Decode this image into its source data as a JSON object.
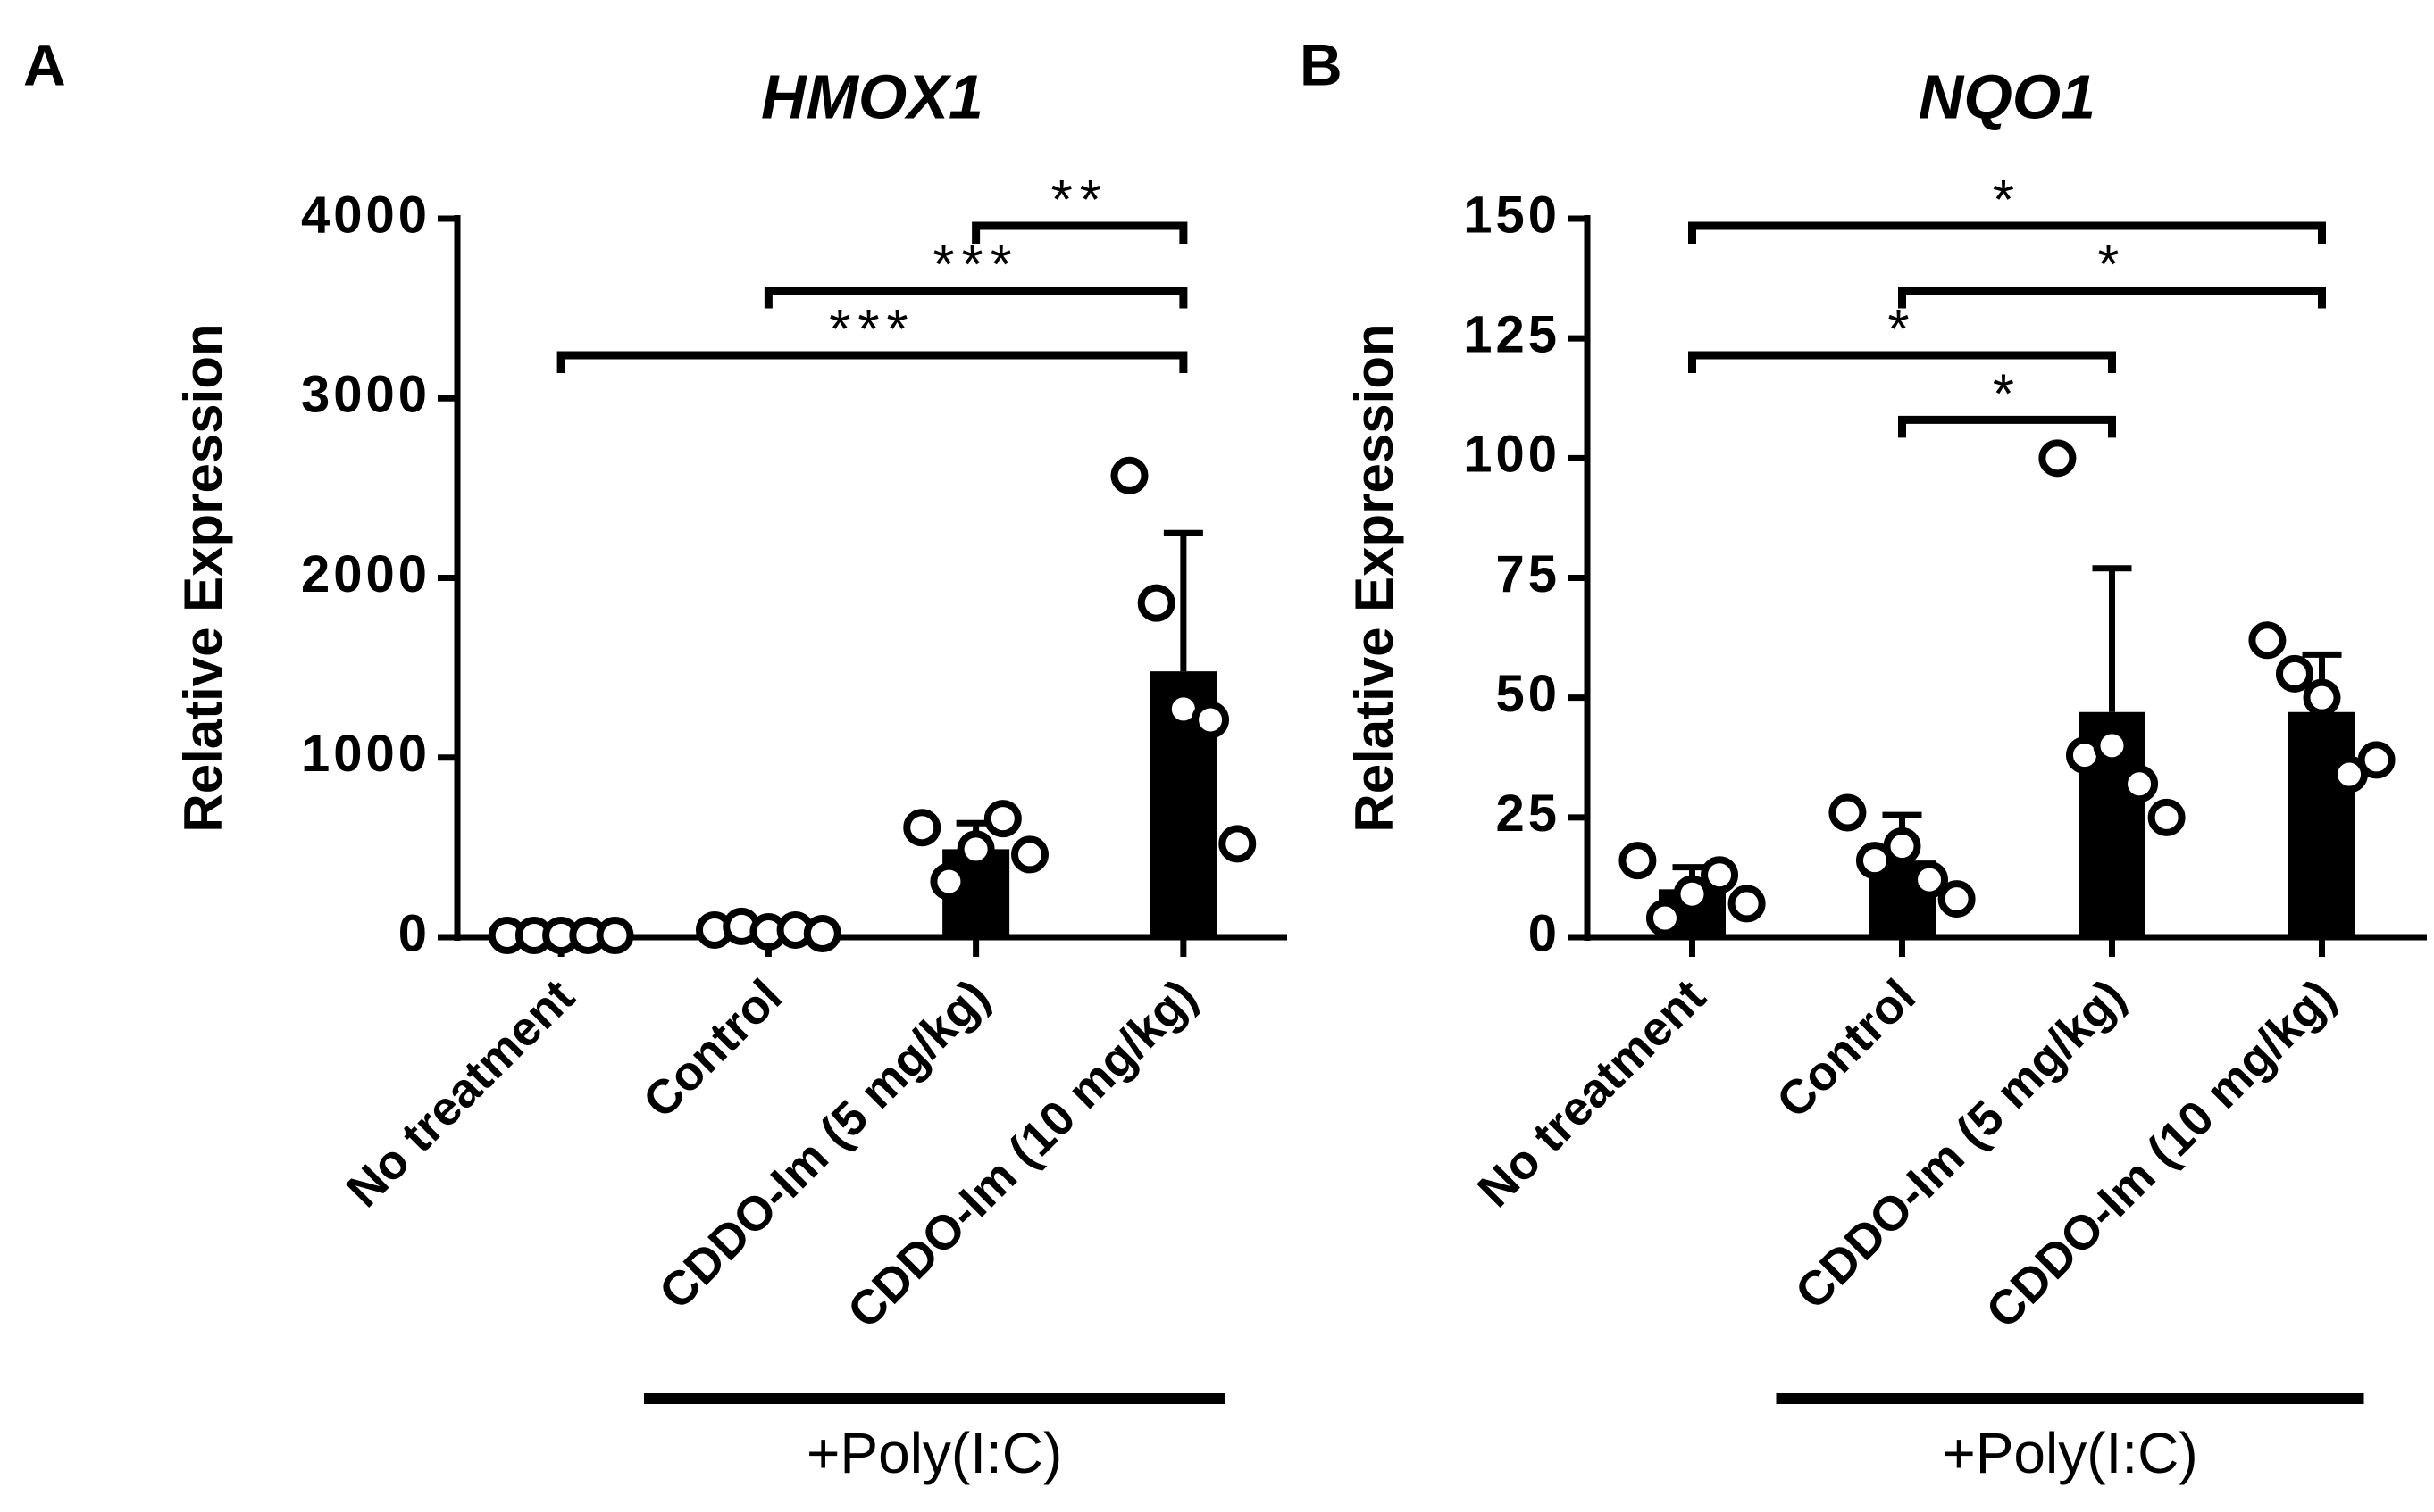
{
  "chart_data": [
    {
      "type": "bar",
      "panel": "A",
      "title": "HMOX1",
      "ylabel": "Relative Expression",
      "categories": [
        "No treatment",
        "Control",
        "CDDO-Im (5 mg/kg)",
        "CDDO-Im (10 mg/kg)"
      ],
      "values": [
        10,
        30,
        490,
        1480
      ],
      "errors": [
        5,
        15,
        145,
        770
      ],
      "points": [
        [
          10,
          10,
          10,
          10,
          10
        ],
        [
          40,
          60,
          30,
          40,
          20
        ],
        [
          610,
          310,
          490,
          660,
          460
        ],
        [
          2570,
          1860,
          1270,
          1210,
          520
        ]
      ],
      "color": "#000000",
      "ylim": [
        0,
        4000
      ],
      "yticks": [
        0,
        1000,
        2000,
        3000,
        4000
      ],
      "brackets": [
        {
          "label": "***",
          "groups": [
            0,
            3
          ]
        },
        {
          "label": "***",
          "groups": [
            1,
            3
          ]
        },
        {
          "label": "**",
          "groups": [
            2,
            3
          ]
        }
      ],
      "group_label": {
        "text": "+Poly(I:C)",
        "groups": [
          1,
          3
        ]
      }
    },
    {
      "type": "bar",
      "panel": "B",
      "title": "NQO1",
      "ylabel": "Relative Expression",
      "categories": [
        "No treatment",
        "Control",
        "CDDO-Im (5 mg/kg)",
        "CDDO-Im (10 mg/kg)"
      ],
      "values": [
        10,
        16,
        47,
        47
      ],
      "errors": [
        4.6,
        9.5,
        30,
        12
      ],
      "points": [
        [
          16,
          4,
          9,
          13,
          7
        ],
        [
          26,
          16,
          19,
          12,
          8
        ],
        [
          100,
          38,
          40,
          32,
          25
        ],
        [
          62,
          55,
          50,
          34,
          37
        ]
      ],
      "color": "#000000",
      "ylim": [
        0,
        150
      ],
      "yticks": [
        0,
        25,
        50,
        75,
        100,
        125,
        150
      ],
      "brackets": [
        {
          "label": "*",
          "groups": [
            1,
            2
          ]
        },
        {
          "label": "*",
          "groups": [
            0,
            2
          ]
        },
        {
          "label": "*",
          "groups": [
            1,
            3
          ]
        },
        {
          "label": "*",
          "groups": [
            0,
            3
          ]
        }
      ],
      "group_label": {
        "text": "+Poly(I:C)",
        "groups": [
          1,
          3
        ]
      }
    }
  ]
}
